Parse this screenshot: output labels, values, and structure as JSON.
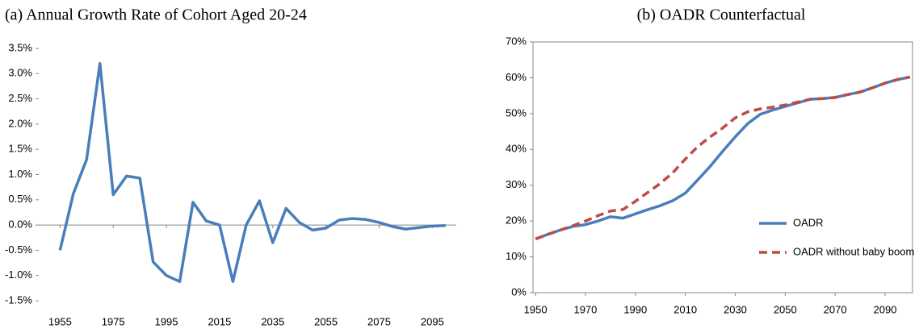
{
  "chart_data": [
    {
      "type": "line",
      "title": "(a)   Annual Growth Rate of Cohort Aged 20-24",
      "x": [
        1955,
        1960,
        1965,
        1970,
        1975,
        1980,
        1985,
        1990,
        1995,
        2000,
        2005,
        2010,
        2015,
        2020,
        2025,
        2030,
        2035,
        2040,
        2045,
        2050,
        2055,
        2060,
        2065,
        2070,
        2075,
        2080,
        2085,
        2090,
        2095,
        2100
      ],
      "series": [
        {
          "name": null,
          "color": "#4a7ebb",
          "values": [
            -0.5,
            0.62,
            1.3,
            3.2,
            0.6,
            0.97,
            0.93,
            -0.73,
            -1.0,
            -1.12,
            0.45,
            0.08,
            0.0,
            -1.12,
            0.0,
            0.48,
            -0.35,
            0.33,
            0.05,
            -0.1,
            -0.06,
            0.1,
            0.13,
            0.11,
            0.05,
            -0.03,
            -0.08,
            -0.05,
            -0.02,
            -0.01
          ]
        }
      ],
      "xlim": [
        1947,
        2104
      ],
      "xticks": [
        1955,
        1975,
        1995,
        2015,
        2035,
        2055,
        2075,
        2095
      ],
      "ylim": [
        -1.5,
        3.5
      ],
      "yticks": [
        {
          "value": -1.5,
          "label": "-1.5%"
        },
        {
          "value": -1.0,
          "label": "-1.0%"
        },
        {
          "value": -0.5,
          "label": "-0.5%"
        },
        {
          "value": 0,
          "label": "0.0%"
        },
        {
          "value": 0.5,
          "label": "0.5%"
        },
        {
          "value": 1.0,
          "label": "1.0%"
        },
        {
          "value": 1.5,
          "label": "1.5%"
        },
        {
          "value": 2.0,
          "label": "2.0%"
        },
        {
          "value": 2.5,
          "label": "2.5%"
        },
        {
          "value": 3.0,
          "label": "3.0%"
        },
        {
          "value": 3.5,
          "label": "3.5%"
        }
      ],
      "grid": false,
      "frame": false,
      "zero_line": true
    },
    {
      "type": "line",
      "title": "(b) OADR Counterfactual",
      "x": [
        1950,
        1955,
        1960,
        1965,
        1970,
        1975,
        1980,
        1985,
        1990,
        1995,
        2000,
        2005,
        2010,
        2015,
        2020,
        2025,
        2030,
        2035,
        2040,
        2045,
        2050,
        2055,
        2060,
        2065,
        2070,
        2075,
        2080,
        2085,
        2090,
        2095,
        2100
      ],
      "series": [
        {
          "name": "OADR",
          "color": "#4a7ebb",
          "dash": false,
          "values": [
            15,
            16.3,
            17.5,
            18.5,
            19,
            20,
            21.2,
            20.8,
            22,
            23.2,
            24.3,
            25.7,
            27.8,
            31.5,
            35.3,
            39.5,
            43.5,
            47.2,
            49.8,
            51,
            52,
            53,
            54,
            54.2,
            54.5,
            55.3,
            56,
            57.2,
            58.5,
            59.5,
            60.2
          ]
        },
        {
          "name": "OADR without baby boom",
          "color": "#be4b48",
          "dash": true,
          "values": [
            15,
            16.3,
            17.5,
            18.7,
            20,
            21.5,
            22.8,
            23.2,
            25.5,
            28,
            30.5,
            33.5,
            37.3,
            40.8,
            43.5,
            46,
            48.8,
            50.5,
            51.3,
            51.8,
            52.4,
            53.2,
            54,
            54.2,
            54.5,
            55.3,
            56,
            57.2,
            58.5,
            59.5,
            60.2
          ]
        }
      ],
      "xlim": [
        1949,
        2101
      ],
      "xticks": [
        1950,
        1970,
        1990,
        2010,
        2030,
        2050,
        2070,
        2090
      ],
      "ylim": [
        0,
        70
      ],
      "yticks": [
        {
          "value": 0,
          "label": "0%"
        },
        {
          "value": 10,
          "label": "10%"
        },
        {
          "value": 20,
          "label": "20%"
        },
        {
          "value": 30,
          "label": "30%"
        },
        {
          "value": 40,
          "label": "40%"
        },
        {
          "value": 50,
          "label": "50%"
        },
        {
          "value": 60,
          "label": "60%"
        },
        {
          "value": 70,
          "label": "70%"
        }
      ],
      "grid": false,
      "frame": true,
      "zero_line": false,
      "legend": "lower right"
    }
  ]
}
